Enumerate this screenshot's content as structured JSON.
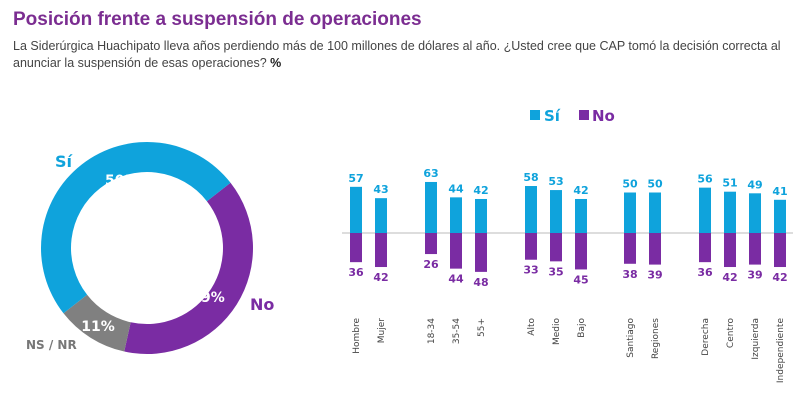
{
  "title": "Posición frente a suspensión de operaciones",
  "subtitle": "La Siderúrgica Huachipato lleva años perdiendo más de 100 millones de dólares al año. ¿Usted cree que CAP tomó la decisión correcta al anunciar la suspensión de esas operaciones?",
  "unit": "%",
  "colors": {
    "si": "#0fa3dc",
    "no": "#7a2ca3",
    "nsnr": "#808080"
  },
  "chart_data": [
    {
      "type": "pie",
      "variant": "donut",
      "slices": [
        {
          "label": "Sí",
          "value": 50,
          "display": "50%"
        },
        {
          "label": "No",
          "value": 39,
          "display": "39%"
        },
        {
          "label": "NS / NR",
          "value": 11,
          "display": "11%"
        }
      ]
    },
    {
      "type": "bar",
      "variant": "diverging",
      "legend": [
        "Sí",
        "No"
      ],
      "legend_position": "top",
      "categories": [
        "Hombre",
        "Mujer",
        "18-34",
        "35-54",
        "55+",
        "Alto",
        "Medio",
        "Bajo",
        "Santiago",
        "Regiones",
        "Derecha",
        "Centro",
        "Izquierda",
        "Independiente"
      ],
      "groups": [
        2,
        3,
        3,
        2,
        4
      ],
      "series": [
        {
          "name": "Sí",
          "values": [
            57,
            43,
            63,
            44,
            42,
            58,
            53,
            42,
            50,
            50,
            56,
            51,
            49,
            41
          ]
        },
        {
          "name": "No",
          "values": [
            36,
            42,
            26,
            44,
            48,
            33,
            35,
            45,
            38,
            39,
            36,
            42,
            39,
            42
          ]
        }
      ]
    }
  ]
}
